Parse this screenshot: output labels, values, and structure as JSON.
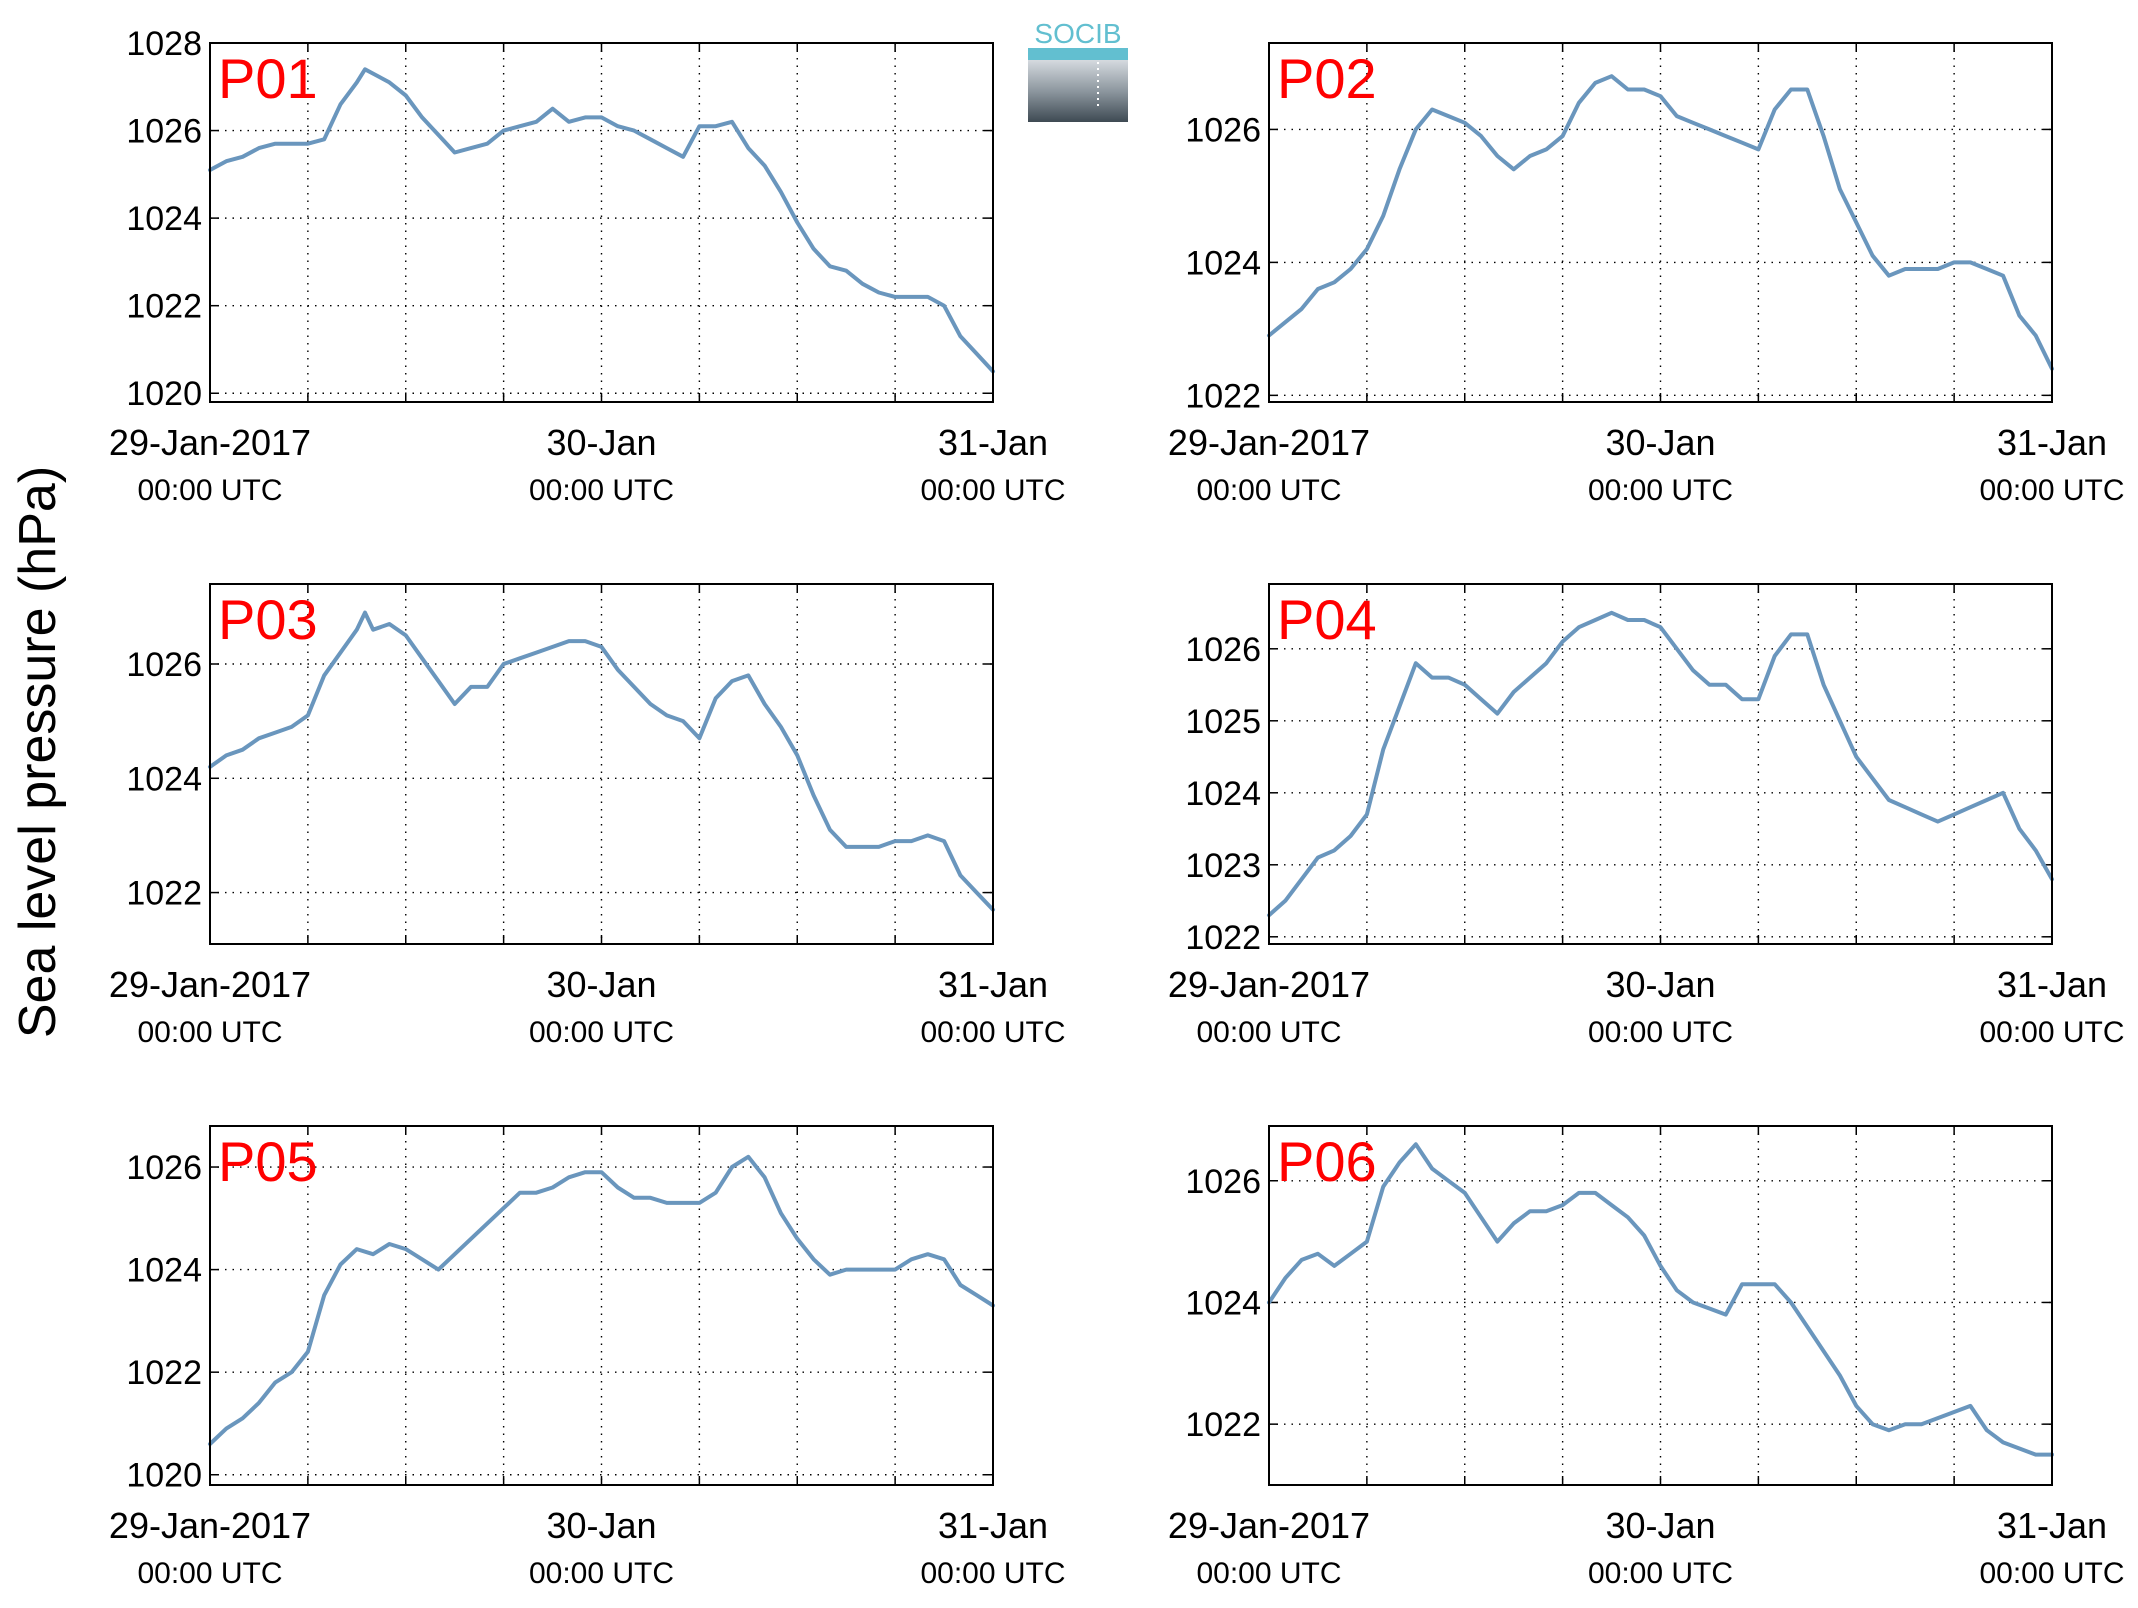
{
  "figure": {
    "ylabel": "Sea level pressure (hPa)",
    "logo_text": "SOCIB",
    "line_color": "#6a96bd",
    "label_color": "#ff0000",
    "grid": true
  },
  "chart_data": [
    {
      "type": "line",
      "name": "P01",
      "xlim": [
        0,
        48
      ],
      "xticks": [
        {
          "value": 0,
          "date": "29-Jan-2017",
          "time": "00:00 UTC"
        },
        {
          "value": 24,
          "date": "30-Jan",
          "time": "00:00 UTC"
        },
        {
          "value": 48,
          "date": "31-Jan",
          "time": "00:00 UTC"
        }
      ],
      "xgrid": [
        6,
        12,
        18,
        24,
        30,
        36,
        42
      ],
      "ylim": [
        1019.8,
        1028
      ],
      "yticks": [
        1020,
        1022,
        1024,
        1026,
        1028
      ],
      "x": [
        0,
        1,
        2,
        3,
        4,
        5,
        6,
        7,
        8,
        9,
        9.5,
        10,
        11,
        12,
        13,
        14,
        15,
        16,
        17,
        18,
        19,
        20,
        21,
        22,
        23,
        24,
        25,
        26,
        27,
        28,
        29,
        30,
        31,
        32,
        33,
        34,
        35,
        36,
        37,
        38,
        39,
        40,
        41,
        42,
        43,
        44,
        45,
        46,
        47,
        48
      ],
      "y": [
        1025.1,
        1025.3,
        1025.4,
        1025.6,
        1025.7,
        1025.7,
        1025.7,
        1025.8,
        1026.6,
        1027.1,
        1027.4,
        1027.3,
        1027.1,
        1026.8,
        1026.3,
        1025.9,
        1025.5,
        1025.6,
        1025.7,
        1026.0,
        1026.1,
        1026.2,
        1026.5,
        1026.2,
        1026.3,
        1026.3,
        1026.1,
        1026.0,
        1025.8,
        1025.6,
        1025.4,
        1026.1,
        1026.1,
        1026.2,
        1025.6,
        1025.2,
        1024.6,
        1023.9,
        1023.3,
        1022.9,
        1022.8,
        1022.5,
        1022.3,
        1022.2,
        1022.2,
        1022.2,
        1022.0,
        1021.3,
        1020.9,
        1020.5
      ]
    },
    {
      "type": "line",
      "name": "P02",
      "xlim": [
        0,
        48
      ],
      "xticks": [
        {
          "value": 0,
          "date": "29-Jan-2017",
          "time": "00:00 UTC"
        },
        {
          "value": 24,
          "date": "30-Jan",
          "time": "00:00 UTC"
        },
        {
          "value": 48,
          "date": "31-Jan",
          "time": "00:00 UTC"
        }
      ],
      "xgrid": [
        6,
        12,
        18,
        24,
        30,
        36,
        42
      ],
      "ylim": [
        1021.9,
        1027.3
      ],
      "yticks": [
        1022,
        1024,
        1026
      ],
      "x": [
        0,
        1,
        2,
        3,
        4,
        5,
        6,
        7,
        8,
        9,
        10,
        11,
        12,
        13,
        14,
        15,
        16,
        17,
        18,
        19,
        20,
        21,
        22,
        23,
        24,
        25,
        26,
        27,
        28,
        29,
        30,
        31,
        32,
        33,
        34,
        35,
        36,
        37,
        38,
        39,
        40,
        41,
        42,
        43,
        44,
        45,
        46,
        47,
        48
      ],
      "y": [
        1022.9,
        1023.1,
        1023.3,
        1023.6,
        1023.7,
        1023.9,
        1024.2,
        1024.7,
        1025.4,
        1026.0,
        1026.3,
        1026.2,
        1026.1,
        1025.9,
        1025.6,
        1025.4,
        1025.6,
        1025.7,
        1025.9,
        1026.4,
        1026.7,
        1026.8,
        1026.6,
        1026.6,
        1026.5,
        1026.2,
        1026.1,
        1026.0,
        1025.9,
        1025.8,
        1025.7,
        1026.3,
        1026.6,
        1026.6,
        1025.9,
        1025.1,
        1024.6,
        1024.1,
        1023.8,
        1023.9,
        1023.9,
        1023.9,
        1024.0,
        1024.0,
        1023.9,
        1023.8,
        1023.2,
        1022.9,
        1022.4
      ]
    },
    {
      "type": "line",
      "name": "P03",
      "xlim": [
        0,
        48
      ],
      "xticks": [
        {
          "value": 0,
          "date": "29-Jan-2017",
          "time": "00:00 UTC"
        },
        {
          "value": 24,
          "date": "30-Jan",
          "time": "00:00 UTC"
        },
        {
          "value": 48,
          "date": "31-Jan",
          "time": "00:00 UTC"
        }
      ],
      "xgrid": [
        6,
        12,
        18,
        24,
        30,
        36,
        42
      ],
      "ylim": [
        1021.1,
        1027.4
      ],
      "yticks": [
        1022,
        1024,
        1026
      ],
      "x": [
        0,
        1,
        2,
        3,
        4,
        5,
        6,
        7,
        8,
        9,
        9.5,
        10,
        11,
        12,
        13,
        14,
        15,
        16,
        17,
        18,
        19,
        20,
        21,
        22,
        23,
        24,
        25,
        26,
        27,
        28,
        29,
        30,
        31,
        32,
        33,
        34,
        35,
        36,
        37,
        38,
        39,
        40,
        41,
        42,
        43,
        44,
        45,
        46,
        47,
        48
      ],
      "y": [
        1024.2,
        1024.4,
        1024.5,
        1024.7,
        1024.8,
        1024.9,
        1025.1,
        1025.8,
        1026.2,
        1026.6,
        1026.9,
        1026.6,
        1026.7,
        1026.5,
        1026.1,
        1025.7,
        1025.3,
        1025.6,
        1025.6,
        1026.0,
        1026.1,
        1026.2,
        1026.3,
        1026.4,
        1026.4,
        1026.3,
        1025.9,
        1025.6,
        1025.3,
        1025.1,
        1025.0,
        1024.7,
        1025.4,
        1025.7,
        1025.8,
        1025.3,
        1024.9,
        1024.4,
        1023.7,
        1023.1,
        1022.8,
        1022.8,
        1022.8,
        1022.9,
        1022.9,
        1023.0,
        1022.9,
        1022.3,
        1022.0,
        1021.7
      ]
    },
    {
      "type": "line",
      "name": "P04",
      "xlim": [
        0,
        48
      ],
      "xticks": [
        {
          "value": 0,
          "date": "29-Jan-2017",
          "time": "00:00 UTC"
        },
        {
          "value": 24,
          "date": "30-Jan",
          "time": "00:00 UTC"
        },
        {
          "value": 48,
          "date": "31-Jan",
          "time": "00:00 UTC"
        }
      ],
      "xgrid": [
        6,
        12,
        18,
        24,
        30,
        36,
        42
      ],
      "ylim": [
        1021.9,
        1026.9
      ],
      "yticks": [
        1022,
        1023,
        1024,
        1025,
        1026
      ],
      "x": [
        0,
        1,
        2,
        3,
        4,
        5,
        6,
        7,
        8,
        9,
        10,
        11,
        12,
        13,
        14,
        15,
        16,
        17,
        18,
        19,
        20,
        21,
        22,
        23,
        24,
        25,
        26,
        27,
        28,
        29,
        30,
        31,
        32,
        33,
        34,
        35,
        36,
        37,
        38,
        39,
        40,
        41,
        42,
        43,
        44,
        45,
        46,
        47,
        48
      ],
      "y": [
        1022.3,
        1022.5,
        1022.8,
        1023.1,
        1023.2,
        1023.4,
        1023.7,
        1024.6,
        1025.2,
        1025.8,
        1025.6,
        1025.6,
        1025.5,
        1025.3,
        1025.1,
        1025.4,
        1025.6,
        1025.8,
        1026.1,
        1026.3,
        1026.4,
        1026.5,
        1026.4,
        1026.4,
        1026.3,
        1026.0,
        1025.7,
        1025.5,
        1025.5,
        1025.3,
        1025.3,
        1025.9,
        1026.2,
        1026.2,
        1025.5,
        1025.0,
        1024.5,
        1024.2,
        1023.9,
        1023.8,
        1023.7,
        1023.6,
        1023.7,
        1023.8,
        1023.9,
        1024.0,
        1023.5,
        1023.2,
        1022.8
      ]
    },
    {
      "type": "line",
      "name": "P05",
      "xlim": [
        0,
        48
      ],
      "xticks": [
        {
          "value": 0,
          "date": "29-Jan-2017",
          "time": "00:00 UTC"
        },
        {
          "value": 24,
          "date": "30-Jan",
          "time": "00:00 UTC"
        },
        {
          "value": 48,
          "date": "31-Jan",
          "time": "00:00 UTC"
        }
      ],
      "xgrid": [
        6,
        12,
        18,
        24,
        30,
        36,
        42
      ],
      "ylim": [
        1019.8,
        1026.8
      ],
      "yticks": [
        1020,
        1022,
        1024,
        1026
      ],
      "x": [
        0,
        1,
        2,
        3,
        4,
        5,
        6,
        7,
        8,
        9,
        10,
        11,
        12,
        13,
        14,
        15,
        16,
        17,
        18,
        19,
        20,
        21,
        22,
        23,
        24,
        25,
        26,
        27,
        28,
        29,
        30,
        31,
        32,
        33,
        34,
        35,
        36,
        37,
        38,
        39,
        40,
        41,
        42,
        43,
        44,
        45,
        46,
        47,
        48
      ],
      "y": [
        1020.6,
        1020.9,
        1021.1,
        1021.4,
        1021.8,
        1022.0,
        1022.4,
        1023.5,
        1024.1,
        1024.4,
        1024.3,
        1024.5,
        1024.4,
        1024.2,
        1024.0,
        1024.3,
        1024.6,
        1024.9,
        1025.2,
        1025.5,
        1025.5,
        1025.6,
        1025.8,
        1025.9,
        1025.9,
        1025.6,
        1025.4,
        1025.4,
        1025.3,
        1025.3,
        1025.3,
        1025.5,
        1026.0,
        1026.2,
        1025.8,
        1025.1,
        1024.6,
        1024.2,
        1023.9,
        1024.0,
        1024.0,
        1024.0,
        1024.0,
        1024.2,
        1024.3,
        1024.2,
        1023.7,
        1023.5,
        1023.3
      ]
    },
    {
      "type": "line",
      "name": "P06",
      "xlim": [
        0,
        48
      ],
      "xticks": [
        {
          "value": 0,
          "date": "29-Jan-2017",
          "time": "00:00 UTC"
        },
        {
          "value": 24,
          "date": "30-Jan",
          "time": "00:00 UTC"
        },
        {
          "value": 48,
          "date": "31-Jan",
          "time": "00:00 UTC"
        }
      ],
      "xgrid": [
        6,
        12,
        18,
        24,
        30,
        36,
        42
      ],
      "ylim": [
        1021.0,
        1026.9
      ],
      "yticks": [
        1022,
        1024,
        1026
      ],
      "x": [
        0,
        1,
        2,
        3,
        4,
        5,
        6,
        7,
        8,
        9,
        10,
        11,
        12,
        13,
        14,
        15,
        16,
        17,
        18,
        19,
        20,
        21,
        22,
        23,
        24,
        25,
        26,
        27,
        28,
        29,
        30,
        31,
        32,
        33,
        34,
        35,
        36,
        37,
        38,
        39,
        40,
        41,
        42,
        43,
        44,
        45,
        46,
        47,
        48
      ],
      "y": [
        1024.0,
        1024.4,
        1024.7,
        1024.8,
        1024.6,
        1024.8,
        1025.0,
        1025.9,
        1026.3,
        1026.6,
        1026.2,
        1026.0,
        1025.8,
        1025.4,
        1025.0,
        1025.3,
        1025.5,
        1025.5,
        1025.6,
        1025.8,
        1025.8,
        1025.6,
        1025.4,
        1025.1,
        1024.6,
        1024.2,
        1024.0,
        1023.9,
        1023.8,
        1024.3,
        1024.3,
        1024.3,
        1024.0,
        1023.6,
        1023.2,
        1022.8,
        1022.3,
        1022.0,
        1021.9,
        1022.0,
        1022.0,
        1022.1,
        1022.2,
        1022.3,
        1021.9,
        1021.7,
        1021.6,
        1021.5,
        1021.5
      ]
    }
  ]
}
